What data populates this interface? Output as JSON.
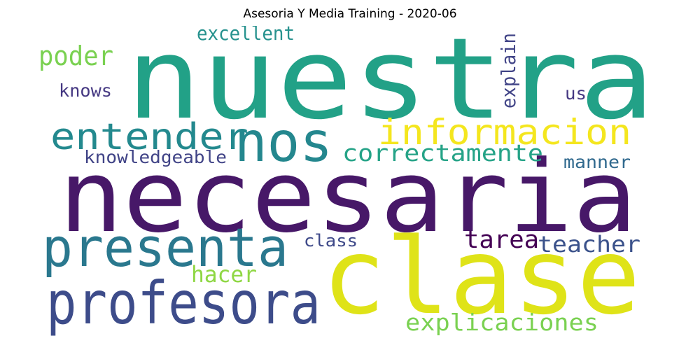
{
  "title": "Asesoria Y Media Training - 2020-06",
  "words": [
    {
      "text": "nuestra",
      "color": "#22a187"
    },
    {
      "text": "necesaria",
      "color": "#471868"
    },
    {
      "text": "clase",
      "color": "#dfe318"
    },
    {
      "text": "profesora",
      "color": "#3d4c8a"
    },
    {
      "text": "presenta",
      "color": "#2a788e"
    },
    {
      "text": "nos",
      "color": "#24878e"
    },
    {
      "text": "informacion",
      "color": "#f4e61e"
    },
    {
      "text": "entender",
      "color": "#23898e"
    },
    {
      "text": "correctamente",
      "color": "#25a387"
    },
    {
      "text": "poder",
      "color": "#7ad151"
    },
    {
      "text": "excellent",
      "color": "#27928e"
    },
    {
      "text": "explain",
      "color": "#414487"
    },
    {
      "text": "knows",
      "color": "#453882"
    },
    {
      "text": "us",
      "color": "#453882"
    },
    {
      "text": "knowledgeable",
      "color": "#414487"
    },
    {
      "text": "manner",
      "color": "#30698e"
    },
    {
      "text": "tarea",
      "color": "#440154"
    },
    {
      "text": "teacher",
      "color": "#3b528b"
    },
    {
      "text": "class",
      "color": "#3e4989"
    },
    {
      "text": "hacer",
      "color": "#8fd744"
    },
    {
      "text": "explicaciones",
      "color": "#7ad151"
    }
  ]
}
